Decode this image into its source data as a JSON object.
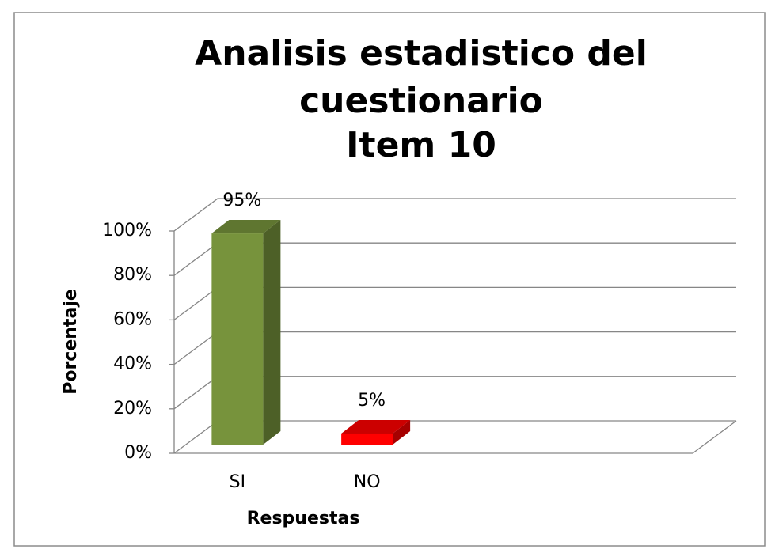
{
  "chart_data": {
    "type": "bar3d",
    "title": [
      "Analisis estadistico del",
      "cuestionario",
      "Item 10"
    ],
    "categories": [
      "SI",
      "NO"
    ],
    "values": [
      95,
      5
    ],
    "value_labels": [
      "95%",
      "5%"
    ],
    "colors": [
      "#77933c",
      "#ff0000"
    ],
    "xlabel": "Respuestas",
    "ylabel": "Porcentaje",
    "ylim": [
      0,
      100
    ],
    "yticks": [
      {
        "value": 0,
        "label": "0%"
      },
      {
        "value": 20,
        "label": "20%"
      },
      {
        "value": 40,
        "label": "40%"
      },
      {
        "value": 60,
        "label": "60%"
      },
      {
        "value": 80,
        "label": "80%"
      },
      {
        "value": 100,
        "label": "100%"
      }
    ],
    "grid": true
  }
}
